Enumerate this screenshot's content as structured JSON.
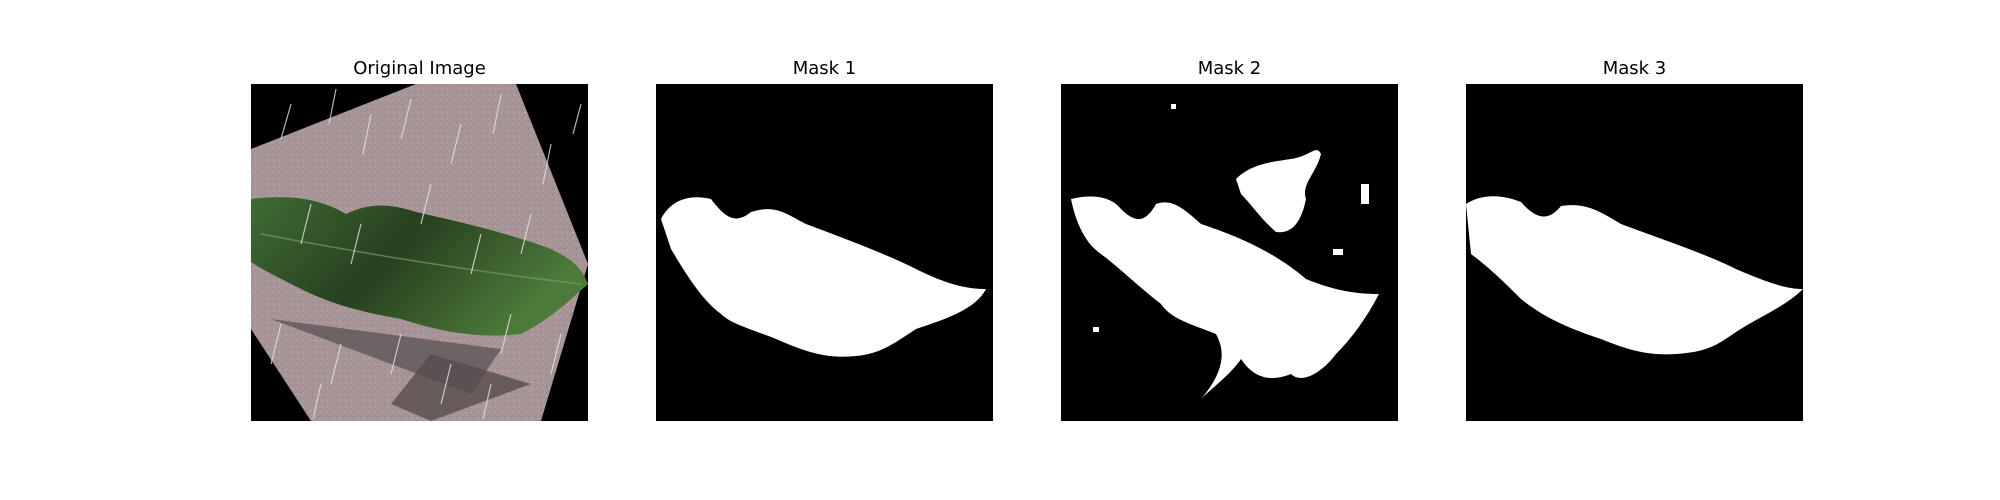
{
  "panels": [
    {
      "title": "Original Image"
    },
    {
      "title": "Mask 1"
    },
    {
      "title": "Mask 2"
    },
    {
      "title": "Mask 3"
    }
  ],
  "colors": {
    "background": "#ffffff",
    "mask_background": "#000000",
    "mask_foreground": "#ffffff",
    "surface": "#a89597",
    "leaf": "#2f4f2a",
    "shadow": "#5a5153"
  }
}
